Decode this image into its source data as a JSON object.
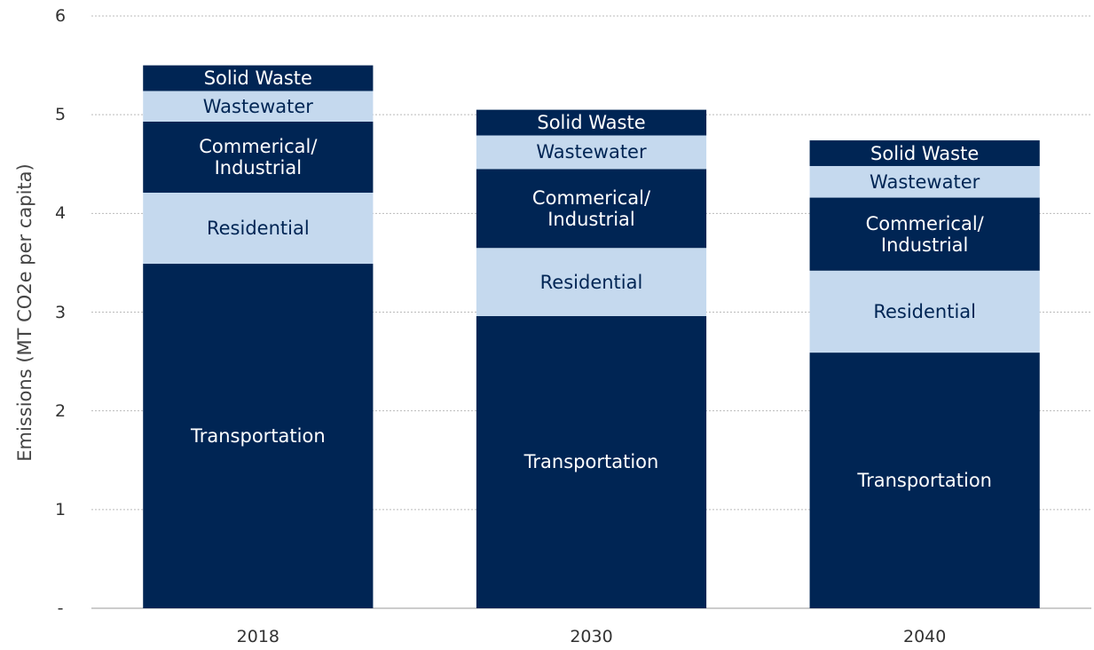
{
  "chart_data": {
    "type": "stacked_bar",
    "y_label": "Emissions (MT CO2e per capita)",
    "categories": [
      "2018",
      "2030",
      "2040"
    ],
    "series": [
      {
        "name": "Transportation",
        "color": "#002554",
        "text_color": "#ffffff",
        "values": [
          3.49,
          2.96,
          2.59
        ]
      },
      {
        "name": "Residential",
        "color": "#c5d9ee",
        "text_color": "#002554",
        "values": [
          0.72,
          0.69,
          0.83
        ]
      },
      {
        "name": "Commerical/\nIndustrial",
        "color": "#002554",
        "text_color": "#ffffff",
        "values": [
          0.72,
          0.8,
          0.74
        ]
      },
      {
        "name": "Wastewater",
        "color": "#c5d9ee",
        "text_color": "#002554",
        "values": [
          0.31,
          0.34,
          0.32
        ]
      },
      {
        "name": "Solid Waste",
        "color": "#002554",
        "text_color": "#ffffff",
        "values": [
          0.26,
          0.26,
          0.26
        ]
      }
    ],
    "ylim": [
      0,
      6
    ],
    "yticks": [
      {
        "value": 0,
        "label": "-"
      },
      1,
      2,
      3,
      4,
      5,
      6
    ],
    "grid": true
  }
}
